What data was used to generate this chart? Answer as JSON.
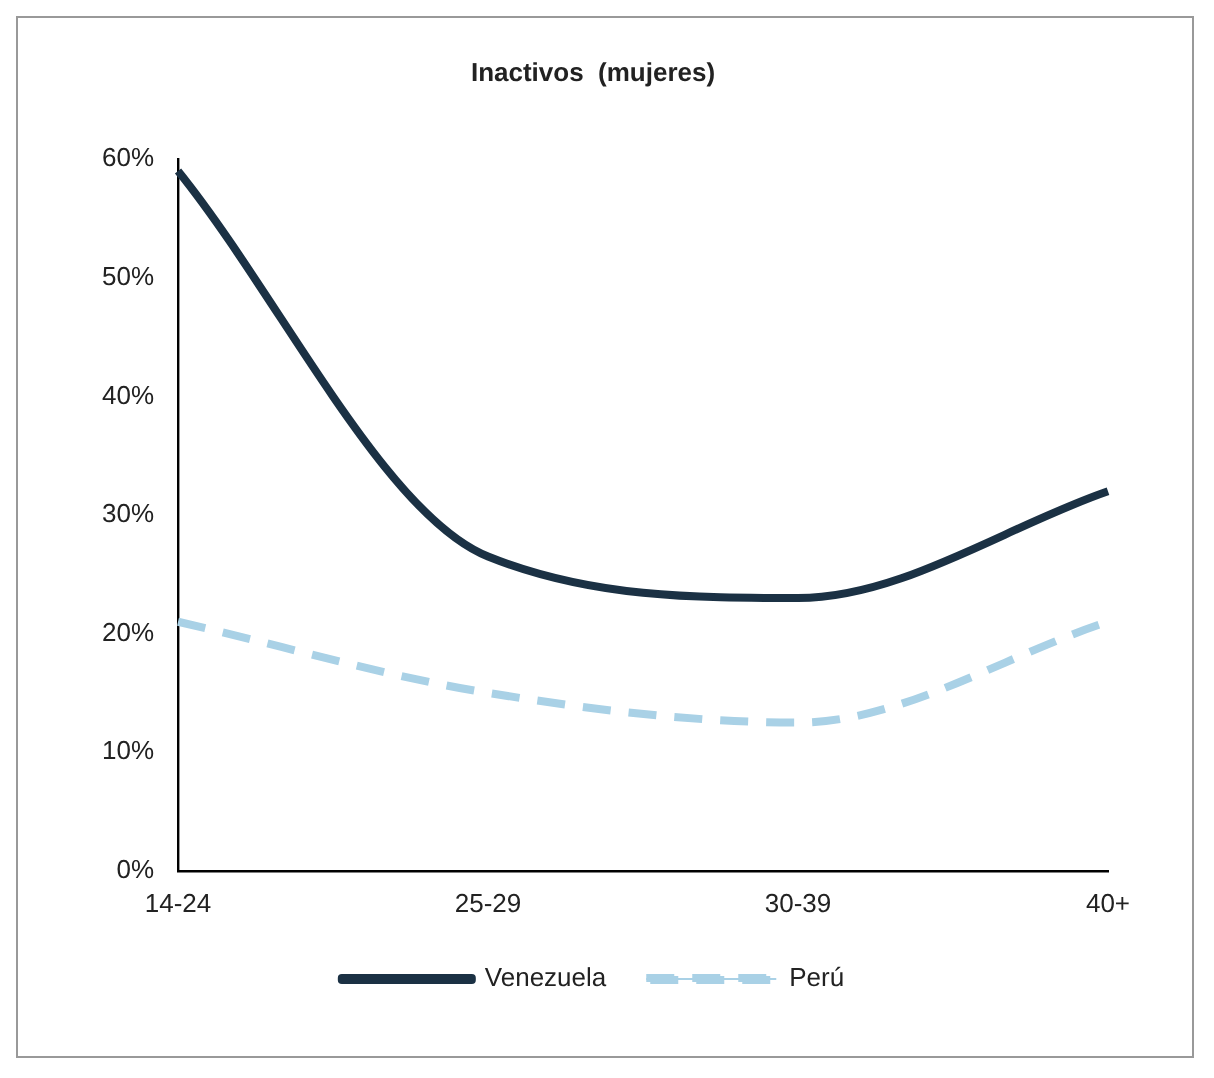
{
  "chart_data": {
    "type": "line",
    "title": "Inactivos  (mujeres)",
    "categories": [
      "14-24",
      "25-29",
      "30-39",
      "40+"
    ],
    "series": [
      {
        "name": "Venezuela",
        "color": "#1b3144",
        "values": [
          59,
          26.5,
          23,
          32
        ],
        "line_style": "solid"
      },
      {
        "name": "Perú",
        "color": "#a9d1e6",
        "values": [
          21,
          15,
          12.5,
          21
        ],
        "line_style": "dashed"
      }
    ],
    "ylim": [
      0,
      60
    ],
    "yticks": [
      {
        "value": 0,
        "label": "0%"
      },
      {
        "value": 10,
        "label": "10%"
      },
      {
        "value": 20,
        "label": "20%"
      },
      {
        "value": 30,
        "label": "30%"
      },
      {
        "value": 40,
        "label": "40%"
      },
      {
        "value": 50,
        "label": "50%"
      },
      {
        "value": 60,
        "label": "60%"
      }
    ],
    "grid": false,
    "legend": "bottom",
    "marker": "none"
  }
}
